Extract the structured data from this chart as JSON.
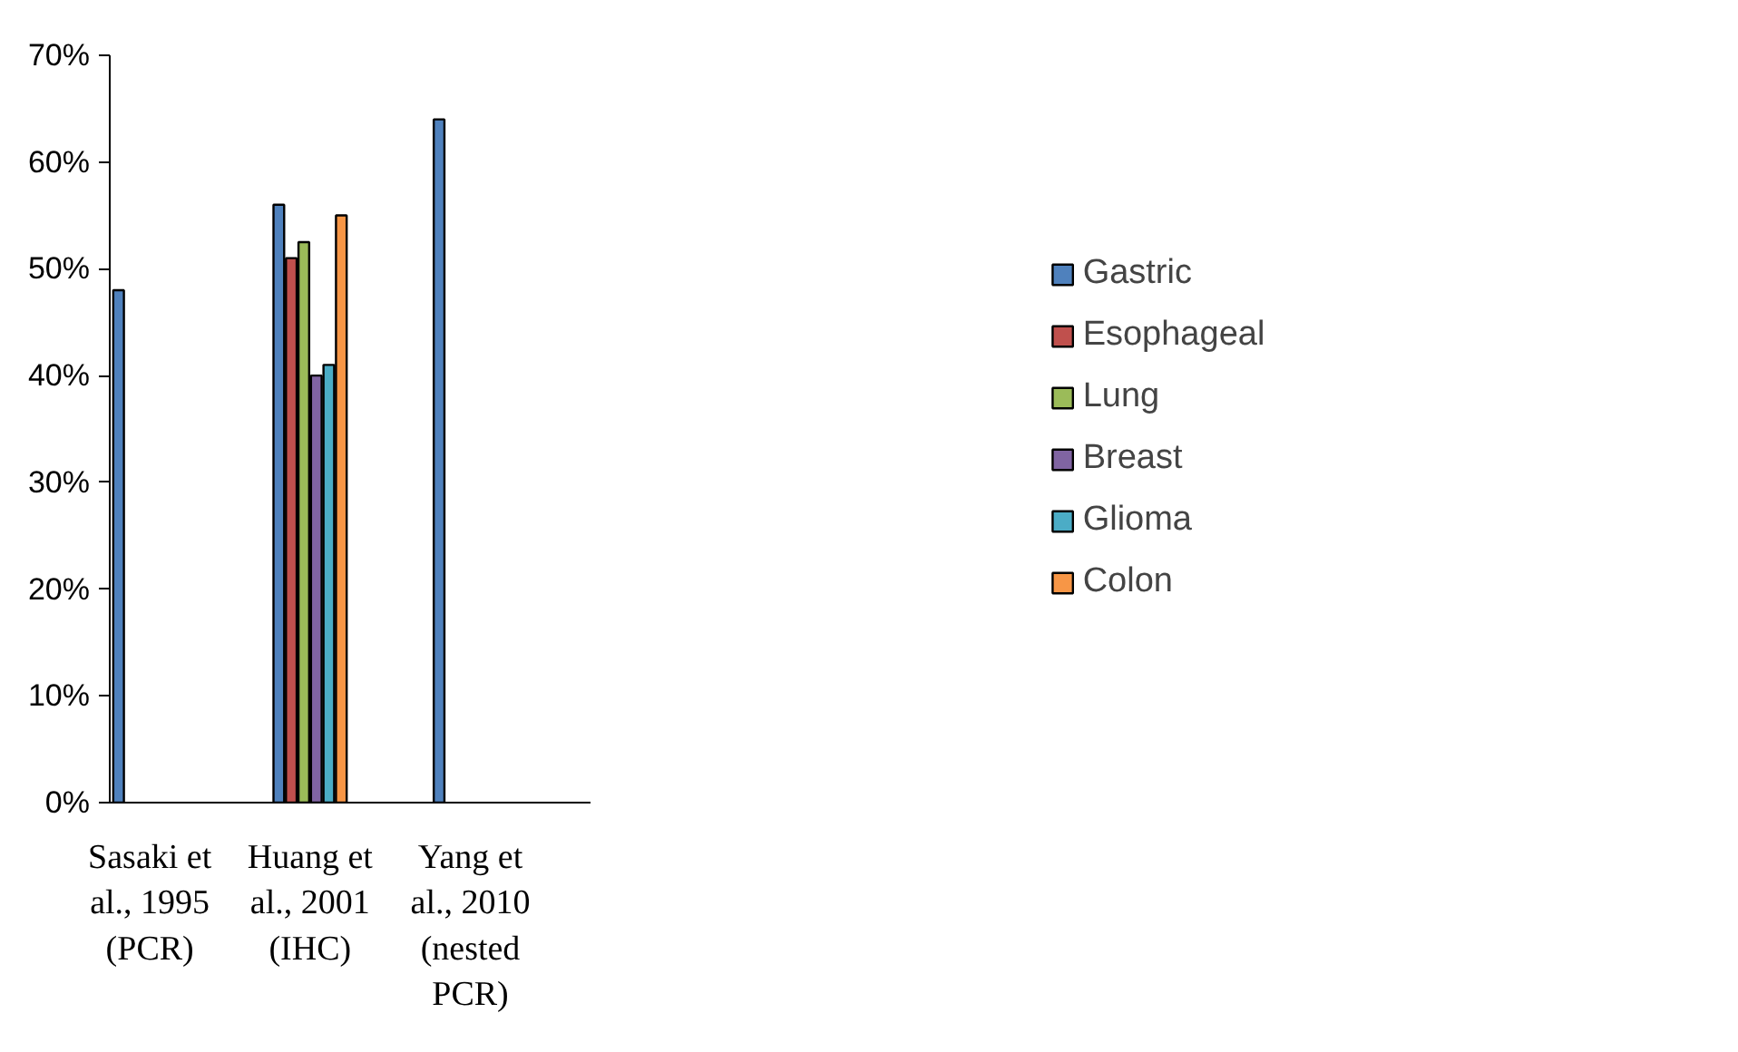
{
  "chart_data": {
    "type": "bar",
    "categories": [
      "Sasaki et al., 1995 (PCR)",
      null,
      "Huang et al., 2001 (IHC)",
      null,
      "Yang et al., 2010 (nested PCR)",
      null
    ],
    "series": [
      {
        "name": "Gastric",
        "color": "#4f81bd",
        "values": [
          48,
          null,
          56,
          null,
          64,
          null
        ]
      },
      {
        "name": "Esophageal",
        "color": "#c0504d",
        "values": [
          null,
          null,
          51,
          null,
          null,
          null
        ]
      },
      {
        "name": "Lung",
        "color": "#9bbb59",
        "values": [
          null,
          null,
          52.5,
          null,
          null,
          null
        ]
      },
      {
        "name": "Breast",
        "color": "#8064a2",
        "values": [
          null,
          null,
          40,
          null,
          null,
          null
        ]
      },
      {
        "name": "Glioma",
        "color": "#4bacc6",
        "values": [
          null,
          null,
          41,
          null,
          null,
          null
        ]
      },
      {
        "name": "Colon",
        "color": "#f79646",
        "values": [
          null,
          null,
          55,
          null,
          null,
          null
        ]
      }
    ],
    "ylim": [
      0,
      70
    ],
    "yticks": [
      {
        "value": 0,
        "label": "0%"
      },
      {
        "value": 10,
        "label": "10%"
      },
      {
        "value": 20,
        "label": "20%"
      },
      {
        "value": 30,
        "label": "30%"
      },
      {
        "value": 40,
        "label": "40%"
      },
      {
        "value": 50,
        "label": "50%"
      },
      {
        "value": 60,
        "label": "60%"
      },
      {
        "value": 70,
        "label": "70%"
      }
    ],
    "grid": false,
    "legend": "right"
  }
}
